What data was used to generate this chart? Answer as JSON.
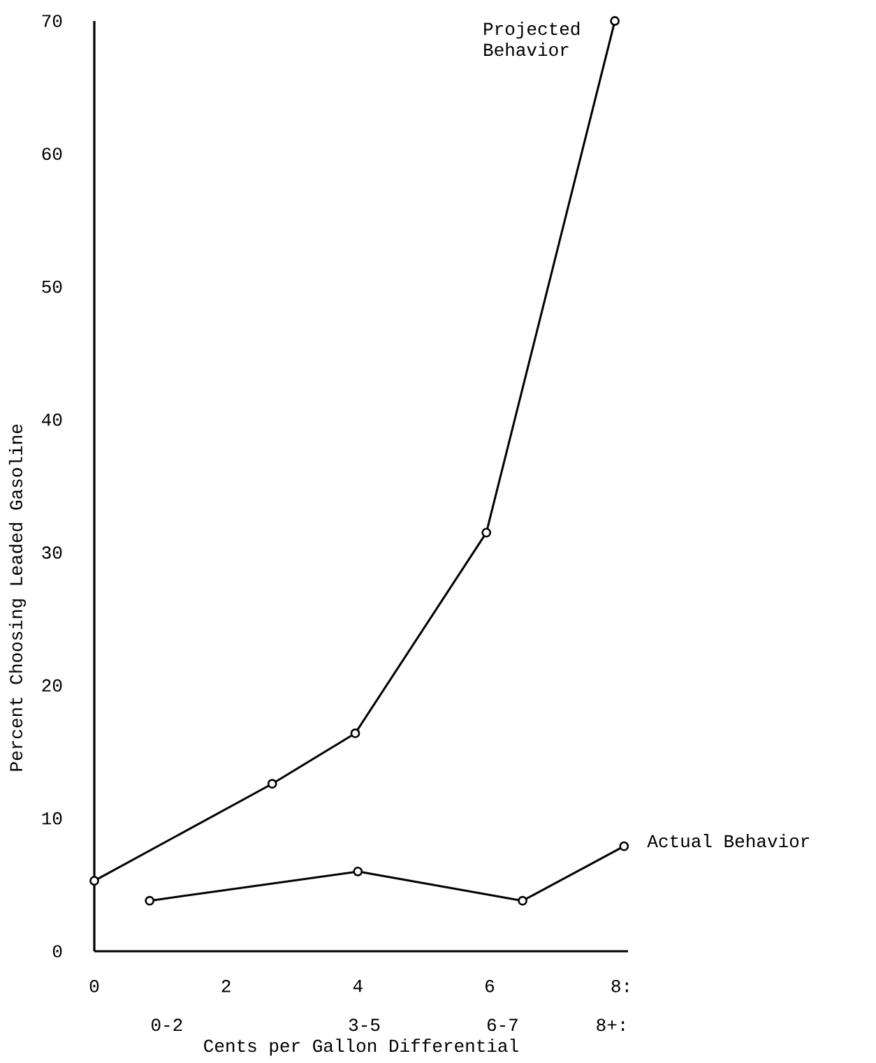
{
  "chart_data": {
    "type": "line",
    "xlabel": "Cents per Gallon Differential",
    "ylabel": "Percent Choosing Leaded Gasoline",
    "xlim": [
      0,
      8.1
    ],
    "xticks": [
      0,
      2,
      4,
      6,
      {
        "value": 8,
        "label": "8:"
      }
    ],
    "annotations": [
      "0-2",
      "3-5",
      "6-7",
      "8+:"
    ],
    "ylim": [
      0,
      70
    ],
    "yticks": [
      0,
      10,
      20,
      30,
      40,
      50,
      60,
      70
    ],
    "marker": "circle",
    "series": [
      {
        "name": "Projected Behavior",
        "color": "#000000",
        "x": [
          0,
          2.7,
          3.96,
          5.95,
          7.9
        ],
        "values": [
          5.3,
          12.6,
          16.4,
          31.5,
          70
        ]
      },
      {
        "name": "Actual Behavior",
        "color": "#000000",
        "x": [
          0.84,
          4.0,
          6.5,
          8.04
        ],
        "values": [
          3.8,
          6.0,
          3.8,
          7.9
        ]
      }
    ]
  }
}
